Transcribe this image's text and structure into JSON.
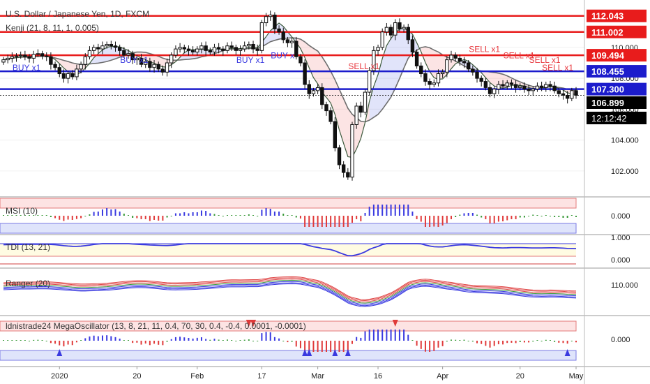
{
  "chart_data": {
    "type": "candlestick",
    "symbol_title": "U.S. Dollar / Japanese Yen, 1D, FXCM",
    "main_indicator": "Kenji (21, 8, 11, 1, 0.005)",
    "x_axis_labels": [
      "2020",
      "20",
      "Feb",
      "17",
      "Mar",
      "16",
      "Apr",
      "20",
      "May"
    ],
    "x_axis_label_candle_index": [
      13,
      31,
      45,
      60,
      73,
      87,
      102,
      120,
      133
    ],
    "price_axis_ticks": [
      "110.000",
      "108.000",
      "106.000",
      "104.000",
      "102.000"
    ],
    "price_axis_tick_values": [
      110,
      108,
      106,
      104,
      102
    ],
    "price_range": [
      100.5,
      112.8
    ],
    "horizontal_levels": [
      {
        "price": 112.043,
        "label": "112.043",
        "color": "#e81c1c"
      },
      {
        "price": 111.002,
        "label": "111.002",
        "color": "#e81c1c"
      },
      {
        "price": 109.494,
        "label": "109.494",
        "color": "#e81c1c"
      },
      {
        "price": 108.455,
        "label": "108.455",
        "color": "#1c1ccc"
      },
      {
        "price": 107.3,
        "label": "107.300",
        "color": "#1c1ccc"
      }
    ],
    "last_price": {
      "price": 106.899,
      "label": "106.899"
    },
    "countdown": "12:12:42",
    "close_prices": [
      109.2,
      109.3,
      109.4,
      109.45,
      109.5,
      109.4,
      109.3,
      109.55,
      109.6,
      109.45,
      109.4,
      108.9,
      108.7,
      108.3,
      108.0,
      108.3,
      108.1,
      108.6,
      108.9,
      109.4,
      109.8,
      110.0,
      109.9,
      110.1,
      110.2,
      110.1,
      110.0,
      109.8,
      109.5,
      109.6,
      109.2,
      109.3,
      108.9,
      109.1,
      108.7,
      108.9,
      108.6,
      108.4,
      109.0,
      109.5,
      109.9,
      110.0,
      109.9,
      109.8,
      109.7,
      109.9,
      110.1,
      109.8,
      109.7,
      110.0,
      109.9,
      109.8,
      110.1,
      110.0,
      109.8,
      109.9,
      110.1,
      110.2,
      109.9,
      109.8,
      111.6,
      112.0,
      112.1,
      111.2,
      111.0,
      110.5,
      110.3,
      110.4,
      109.4,
      109.0,
      107.6,
      107.0,
      107.2,
      107.4,
      106.3,
      105.9,
      105.2,
      103.5,
      102.4,
      101.9,
      101.6,
      105.0,
      106.2,
      105.8,
      107.1,
      108.5,
      109.8,
      110.0,
      111.0,
      111.3,
      110.8,
      111.6,
      111.2,
      111.3,
      110.5,
      109.7,
      108.8,
      108.3,
      107.8,
      107.6,
      107.7,
      108.3,
      108.4,
      109.2,
      109.5,
      109.3,
      109.1,
      109.0,
      108.6,
      108.4,
      108.0,
      107.8,
      107.4,
      107.0,
      107.3,
      107.6,
      107.5,
      107.7,
      107.6,
      107.4,
      107.5,
      107.3,
      107.2,
      107.3,
      107.5,
      107.4,
      107.6,
      107.5,
      107.2,
      107.0,
      106.9,
      106.7,
      107.2,
      106.9
    ],
    "trade_signals": [
      {
        "text": "BUY x1",
        "candle_index": 5,
        "price": 108.5,
        "color": "#3a3ae0"
      },
      {
        "text": "BUY x1",
        "candle_index": 30,
        "price": 109.0,
        "color": "#3a3ae0"
      },
      {
        "text": "BUY x1",
        "candle_index": 57,
        "price": 109.0,
        "color": "#3a3ae0"
      },
      {
        "text": "BUY x",
        "candle_index": 65,
        "price": 109.3,
        "color": "#3a3ae0"
      },
      {
        "text": "SELL x1",
        "candle_index": 83,
        "price": 108.6,
        "color": "#e8373d"
      },
      {
        "text": "SELL x1",
        "candle_index": 111,
        "price": 109.7,
        "color": "#e8373d"
      },
      {
        "text": "SELL x1",
        "candle_index": 119,
        "price": 109.3,
        "color": "#e8373d"
      },
      {
        "text": "SELL x1",
        "candle_index": 125,
        "price": 109.0,
        "color": "#e8373d"
      },
      {
        "text": "SELL x1",
        "candle_index": 128,
        "price": 108.5,
        "color": "#e8373d"
      }
    ],
    "indicators": [
      {
        "name": "MSI (10)",
        "ticks": [
          "0.000"
        ]
      },
      {
        "name": "TDI (13, 21)",
        "ticks": [
          "1.000",
          "0.000"
        ]
      },
      {
        "name": "Ranger (20)",
        "ticks": [
          "110.000"
        ]
      },
      {
        "name": "ldnistrade24 MegaOscillator (13, 8, 21, 11, 0.4, 70, 30, 0.4, -0.4, 0.0001, -0.0001)",
        "ticks": [
          "0.000"
        ]
      }
    ]
  }
}
